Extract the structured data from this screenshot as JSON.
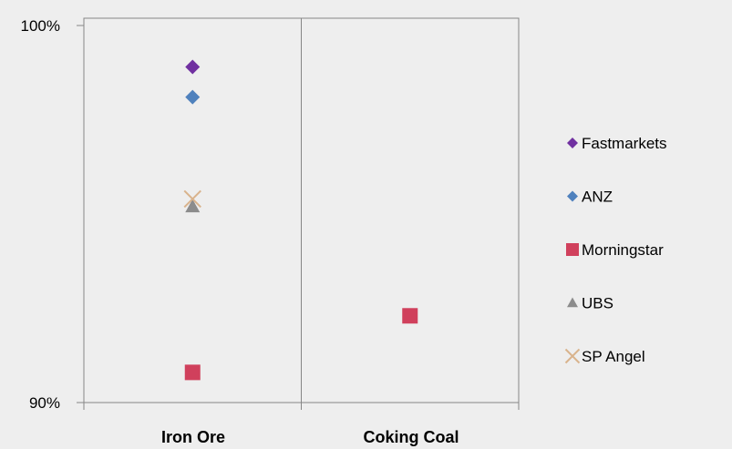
{
  "chart_data": {
    "type": "scatter",
    "title": "",
    "xlabel": "",
    "ylabel": "",
    "categories": [
      "Iron Ore",
      "Coking Coal"
    ],
    "y_tick_labels": [
      "100%",
      "90%"
    ],
    "ylim": [
      90,
      100
    ],
    "grid": true,
    "legend_position": "right",
    "series": [
      {
        "name": "Fastmarkets",
        "marker": "diamond",
        "color": "#7030A0",
        "values": [
          98.9,
          null
        ]
      },
      {
        "name": "ANZ",
        "marker": "diamond",
        "color": "#4F81BD",
        "values": [
          98.1,
          null
        ]
      },
      {
        "name": "Morningstar",
        "marker": "square",
        "color": "#D0405C",
        "values": [
          90.8,
          92.3
        ]
      },
      {
        "name": "UBS",
        "marker": "triangle",
        "color": "#8C8C8C",
        "values": [
          95.2,
          null
        ]
      },
      {
        "name": "SP Angel",
        "marker": "x",
        "color": "#D9B38C",
        "values": [
          95.4,
          null
        ]
      }
    ]
  }
}
